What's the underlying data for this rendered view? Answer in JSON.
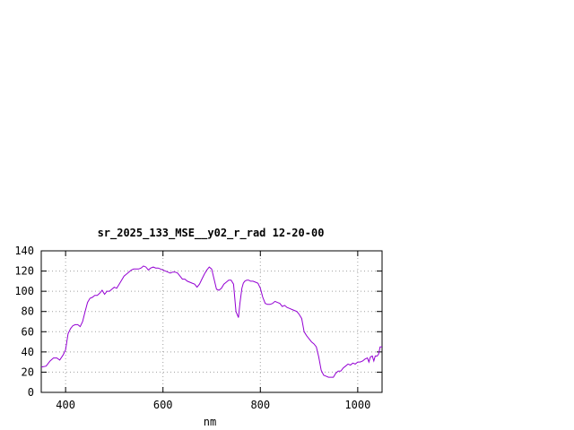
{
  "chart_data": {
    "type": "line",
    "title": "sr_2025_133_MSE__y02_r_rad 12-20-00",
    "xlabel": "nm",
    "ylabel": "",
    "xlim": [
      350,
      1050
    ],
    "ylim": [
      0,
      140
    ],
    "xticks": [
      400,
      600,
      800,
      1000
    ],
    "yticks": [
      0,
      20,
      40,
      60,
      80,
      100,
      120,
      140
    ],
    "grid": true,
    "legend": "none",
    "series": [
      {
        "color": "#9400d3",
        "x": [
          350,
          360,
          368,
          375,
          382,
          388,
          395,
          400,
          405,
          410,
          415,
          420,
          425,
          430,
          435,
          440,
          445,
          450,
          455,
          460,
          465,
          470,
          475,
          480,
          485,
          490,
          495,
          500,
          505,
          510,
          515,
          520,
          525,
          530,
          535,
          540,
          545,
          550,
          555,
          560,
          565,
          570,
          575,
          580,
          585,
          590,
          595,
          600,
          605,
          610,
          615,
          620,
          625,
          630,
          635,
          640,
          645,
          650,
          655,
          660,
          665,
          670,
          675,
          680,
          685,
          690,
          695,
          700,
          705,
          710,
          715,
          720,
          725,
          730,
          735,
          740,
          745,
          750,
          755,
          758,
          762,
          765,
          768,
          772,
          776,
          780,
          785,
          790,
          795,
          800,
          805,
          810,
          815,
          820,
          825,
          830,
          835,
          840,
          845,
          850,
          855,
          860,
          865,
          870,
          875,
          880,
          885,
          890,
          895,
          900,
          905,
          910,
          915,
          920,
          925,
          930,
          935,
          940,
          945,
          950,
          955,
          960,
          965,
          970,
          975,
          980,
          985,
          990,
          995,
          1000,
          1005,
          1010,
          1015,
          1020,
          1023,
          1026,
          1030,
          1033,
          1036,
          1040,
          1043,
          1046,
          1050
        ],
        "y": [
          25,
          26,
          31,
          34,
          34,
          32,
          37,
          42,
          58,
          63,
          66,
          67,
          67,
          65,
          70,
          80,
          89,
          93,
          94,
          96,
          96,
          98,
          101,
          97,
          100,
          100,
          102,
          104,
          103,
          107,
          111,
          115,
          117,
          119,
          121,
          122,
          122,
          122,
          123,
          125,
          124,
          121,
          123,
          124,
          123,
          123,
          122,
          121,
          120,
          119,
          118,
          119,
          119,
          118,
          115,
          112,
          112,
          110,
          109,
          108,
          107,
          104,
          107,
          112,
          117,
          121,
          124,
          122,
          112,
          102,
          101,
          103,
          107,
          109,
          111,
          111,
          107,
          80,
          74,
          88,
          103,
          108,
          110,
          111,
          111,
          110,
          110,
          109,
          108,
          103,
          94,
          88,
          87,
          87,
          88,
          90,
          89,
          88,
          85,
          86,
          84,
          83,
          82,
          81,
          80,
          77,
          73,
          60,
          56,
          53,
          50,
          48,
          45,
          35,
          22,
          17,
          16,
          15,
          15,
          15,
          19,
          21,
          21,
          24,
          26,
          28,
          27,
          29,
          28,
          30,
          30,
          31,
          33,
          34,
          30,
          35,
          36,
          31,
          36,
          36,
          38,
          45,
          45
        ]
      }
    ]
  }
}
